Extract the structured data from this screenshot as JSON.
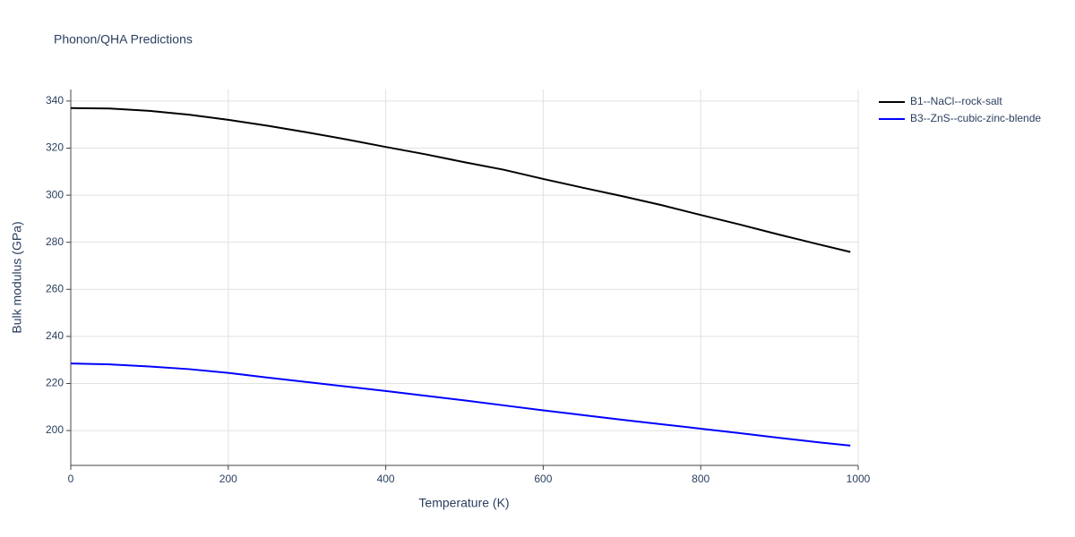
{
  "chart_data": {
    "type": "line",
    "title": "Phonon/QHA Predictions",
    "x_label": "Temperature (K)",
    "y_label": "Bulk modulus (GPa)",
    "x": [
      0,
      50,
      100,
      150,
      200,
      250,
      300,
      350,
      400,
      450,
      500,
      550,
      600,
      650,
      700,
      750,
      800,
      850,
      900,
      950,
      990
    ],
    "series": [
      {
        "name": "B1--NaCl--rock-salt",
        "color": "#000000",
        "values": [
          337,
          336.8,
          335.8,
          334.2,
          332,
          329.5,
          326.7,
          323.7,
          320.5,
          317.4,
          314,
          310.8,
          306.9,
          303.2,
          299.6,
          295.8,
          291.6,
          287.5,
          283.2,
          279.1,
          275.9
        ]
      },
      {
        "name": "B3--ZnS--cubic-zinc-blende",
        "color": "#0000ff",
        "values": [
          228.5,
          228.1,
          227.2,
          226.1,
          224.5,
          222.5,
          220.6,
          218.7,
          216.8,
          214.8,
          212.8,
          210.7,
          208.6,
          206.6,
          204.6,
          202.7,
          200.8,
          198.9,
          196.9,
          195,
          193.6
        ]
      }
    ],
    "xlim": [
      0,
      1000
    ],
    "xticks": [
      0,
      200,
      400,
      600,
      800,
      1000
    ],
    "ylim": [
      185.2,
      344.9
    ],
    "yticks": [
      200,
      220,
      240,
      260,
      280,
      300,
      320,
      340
    ],
    "grid": true,
    "legend": "right"
  }
}
